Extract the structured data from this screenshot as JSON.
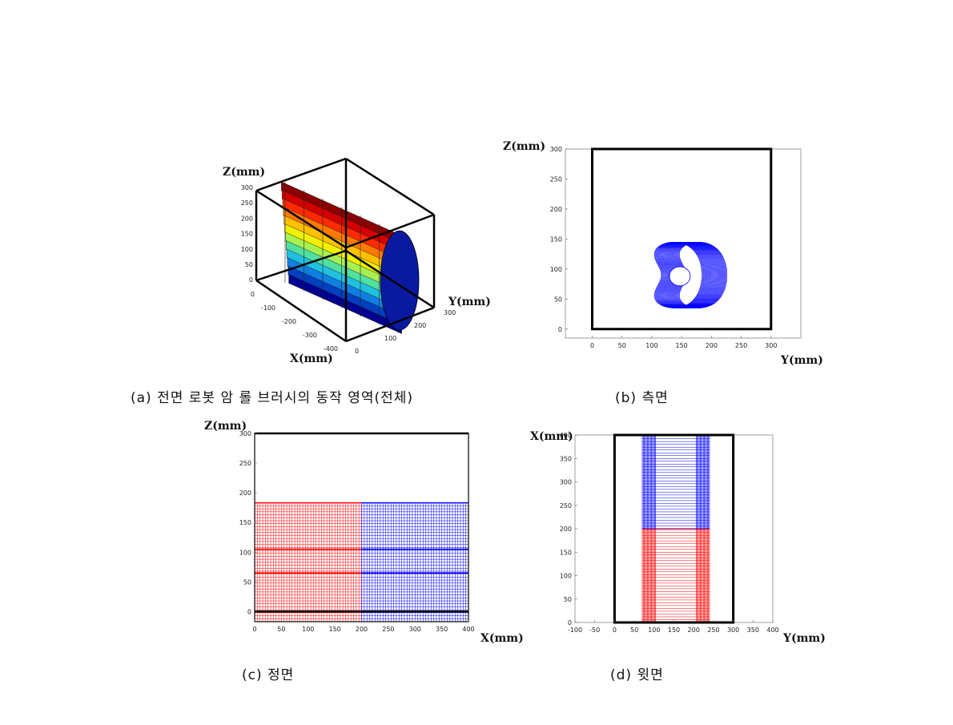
{
  "captions": {
    "a": "(a) 전면 로봇 암 롤 브러시의 동작 영역(전체)",
    "b": "(b) 측면",
    "c": "(c) 정면",
    "d": "(d) 윗면"
  },
  "colors": {
    "red": "#ff0000",
    "blue": "#0000ff",
    "frame": "#000000"
  },
  "chart_data": [
    {
      "id": "a",
      "type": "surface3d",
      "xlabel": "X(mm)",
      "ylabel": "Y(mm)",
      "zlabel": "Z(mm)",
      "x_ticks": [
        "0",
        "-100",
        "-200",
        "-300",
        "-400"
      ],
      "y_ticks": [
        "0",
        "100",
        "200",
        "300"
      ],
      "z_ticks": [
        "300",
        "250",
        "200",
        "150",
        "100",
        "50",
        "0"
      ],
      "xlim": [
        -400,
        0
      ],
      "ylim": [
        0,
        300
      ],
      "zlim": [
        0,
        300
      ],
      "colormap": "jet"
    },
    {
      "id": "b",
      "type": "line",
      "xlabel": "Y(mm)",
      "ylabel": "Z(mm)",
      "xlim": [
        -45,
        350
      ],
      "ylim": [
        -15,
        300
      ],
      "x_ticks": [
        0,
        50,
        100,
        150,
        200,
        250,
        300
      ],
      "y_ticks": [
        0,
        50,
        100,
        150,
        200,
        250,
        300
      ],
      "frame_box": {
        "y": [
          0,
          300
        ],
        "z": [
          0,
          300
        ]
      },
      "curve": {
        "center": [
          150,
          90
        ],
        "r_range": [
          10,
          92
        ],
        "sweep_y": [
          120,
          162
        ]
      }
    },
    {
      "id": "c",
      "type": "line",
      "xlabel": "X(mm)",
      "ylabel": "Z(mm)",
      "xlim": [
        0,
        400
      ],
      "ylim": [
        -17,
        300
      ],
      "x_ticks": [
        0,
        50,
        100,
        150,
        200,
        250,
        300,
        350,
        400
      ],
      "y_ticks": [
        0,
        50,
        100,
        150,
        200,
        250,
        300
      ],
      "frame_box": {
        "x": [
          0,
          400
        ],
        "z": [
          0,
          300
        ]
      },
      "series": [
        {
          "color": "red",
          "x_range": [
            0,
            200
          ],
          "z_range": [
            -17,
            183
          ]
        },
        {
          "color": "blue",
          "x_range": [
            200,
            400
          ],
          "z_range": [
            -17,
            183
          ]
        }
      ],
      "dense_z": [
        65,
        105
      ]
    },
    {
      "id": "d",
      "type": "line",
      "xlabel": "Y(mm)",
      "ylabel": "X(mm)",
      "xlim": [
        -100,
        400
      ],
      "ylim": [
        0,
        400
      ],
      "x_ticks": [
        -100,
        -50,
        0,
        50,
        100,
        150,
        200,
        250,
        300,
        350,
        400
      ],
      "y_ticks": [
        0,
        50,
        100,
        150,
        200,
        250,
        300,
        350,
        400
      ],
      "frame_box": {
        "y": [
          0,
          300
        ],
        "x": [
          0,
          400
        ]
      },
      "series": [
        {
          "color": "red",
          "x_range": [
            0,
            200
          ],
          "y_range": [
            70,
            240
          ]
        },
        {
          "color": "blue",
          "x_range": [
            200,
            400
          ],
          "y_range": [
            70,
            240
          ]
        }
      ]
    }
  ]
}
